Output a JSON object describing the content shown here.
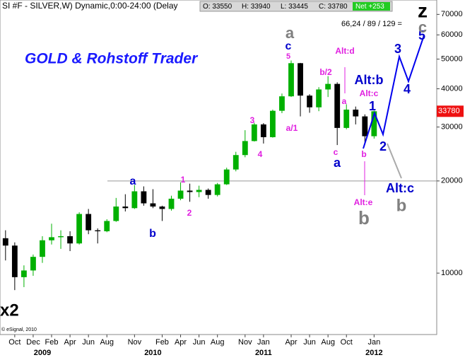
{
  "chart_data": {
    "type": "candlestick",
    "title": "SI #F - SILVER,W) Dynamic,0:00-24:00 (Delay",
    "ohlc_box": [
      "O: 33550",
      "H: 33940",
      "L: 33445",
      "C: 33780"
    ],
    "net_box": "Net +253",
    "ratio_text": "66,24 / 89 / 129 =",
    "brand": "GOLD & Rohstoff Trader",
    "degree_label": "x2",
    "copyright": "© eSignal, 2010",
    "last_price": 33780,
    "hline": 20000,
    "log_scale": true,
    "up_color": "#00b000",
    "down_color": "#000000",
    "x": [
      -1,
      0,
      1,
      2,
      3,
      4,
      5,
      6,
      7,
      8,
      9,
      10,
      11,
      12,
      13,
      14,
      15,
      16,
      17,
      18,
      19,
      20,
      21,
      22,
      23,
      24,
      25,
      26,
      27,
      28,
      29,
      30,
      31,
      32,
      33,
      34,
      35,
      36,
      37,
      38,
      39
    ],
    "open": [
      13000,
      12300,
      9700,
      10200,
      11300,
      12800,
      13100,
      13200,
      12500,
      15600,
      13800,
      13700,
      14800,
      16500,
      16300,
      18500,
      16900,
      16500,
      16200,
      17500,
      18600,
      18400,
      18700,
      18000,
      19500,
      21800,
      24300,
      27000,
      30600,
      27800,
      33900,
      37800,
      48500,
      38000,
      34800,
      39800,
      41500,
      29800,
      34200,
      32500,
      28000
    ],
    "high": [
      13800,
      12600,
      10600,
      11500,
      13200,
      14500,
      13800,
      13700,
      15800,
      16200,
      14000,
      15000,
      17600,
      18100,
      19400,
      19200,
      18800,
      16600,
      17900,
      19800,
      19600,
      19300,
      18900,
      19700,
      22100,
      24900,
      29300,
      31000,
      30900,
      34200,
      38600,
      49500,
      48600,
      38400,
      40500,
      44000,
      42000,
      35600,
      35000,
      33000,
      33940
    ],
    "low": [
      11000,
      8800,
      9000,
      9800,
      10800,
      12400,
      12000,
      11800,
      12400,
      13400,
      12500,
      13600,
      14700,
      15900,
      16200,
      16600,
      16300,
      14800,
      16000,
      17300,
      17100,
      17700,
      17500,
      17800,
      19400,
      21500,
      23900,
      26900,
      26500,
      27700,
      33300,
      37600,
      32500,
      33400,
      33800,
      37600,
      26200,
      29500,
      30600,
      26400,
      27500
    ],
    "close": [
      12300,
      9700,
      10200,
      11300,
      12800,
      13100,
      13200,
      12500,
      15600,
      13800,
      13700,
      14800,
      16500,
      16300,
      18500,
      16900,
      16500,
      16200,
      17500,
      18600,
      18400,
      18700,
      18000,
      19500,
      21800,
      24300,
      27000,
      30600,
      27800,
      33900,
      37800,
      48500,
      38000,
      34800,
      39800,
      41500,
      29800,
      34200,
      32500,
      28000,
      33780
    ],
    "xlim": [
      -1.6,
      45.8
    ],
    "ylim": [
      6300,
      78000
    ],
    "yticks": [
      10000,
      20000,
      30000,
      40000,
      50000,
      60000,
      70000
    ],
    "xticks": [
      {
        "value": 0,
        "label": "Oct"
      },
      {
        "value": 2,
        "label": "Dec"
      },
      {
        "value": 4,
        "label": "Feb"
      },
      {
        "value": 6,
        "label": "Apr"
      },
      {
        "value": 8,
        "label": "Jun"
      },
      {
        "value": 10,
        "label": "Aug"
      },
      {
        "value": 13,
        "label": "Nov"
      },
      {
        "value": 16,
        "label": "Feb"
      },
      {
        "value": 18,
        "label": "Apr"
      },
      {
        "value": 20,
        "label": "Jun"
      },
      {
        "value": 22,
        "label": "Aug"
      },
      {
        "value": 25,
        "label": "Nov"
      },
      {
        "value": 27,
        "label": "Jan"
      },
      {
        "value": 30,
        "label": "Apr"
      },
      {
        "value": 32,
        "label": "Jun"
      },
      {
        "value": 34,
        "label": "Aug"
      },
      {
        "value": 36,
        "label": "Oct"
      },
      {
        "value": 39,
        "label": "Jan"
      }
    ],
    "year_ticks": [
      {
        "value": 3,
        "label": "2009"
      },
      {
        "value": 15,
        "label": "2010"
      },
      {
        "value": 27,
        "label": "2011"
      },
      {
        "value": 39,
        "label": "2012"
      }
    ],
    "annotations": [
      {
        "text": "a",
        "color": "#808080"
      },
      {
        "text": "c",
        "color": "#0000cc"
      },
      {
        "text": "5",
        "color": "#e020e0"
      },
      {
        "text": "a",
        "color": "#0000cc"
      },
      {
        "text": "b",
        "color": "#0000cc"
      },
      {
        "text": "1",
        "color": "#e020e0"
      },
      {
        "text": "2",
        "color": "#e020e0"
      },
      {
        "text": "3",
        "color": "#e020e0"
      },
      {
        "text": "4",
        "color": "#e020e0"
      },
      {
        "text": "a/1",
        "color": "#e020e0"
      },
      {
        "text": "b/2",
        "color": "#e020e0"
      },
      {
        "text": "Alt:d",
        "color": "#e020e0"
      },
      {
        "text": "Alt:b",
        "color": "#0000cc"
      },
      {
        "text": "Alt:c",
        "color": "#e020e0"
      },
      {
        "text": "1",
        "color": "#0000cc"
      },
      {
        "text": "a",
        "color": "#e020e0"
      },
      {
        "text": "c",
        "color": "#e020e0"
      },
      {
        "text": "a",
        "color": "#0000cc"
      },
      {
        "text": "b",
        "color": "#e020e0"
      },
      {
        "text": "Alt:e",
        "color": "#e020e0"
      },
      {
        "text": "b",
        "color": "#808080"
      },
      {
        "text": "2",
        "color": "#0000cc"
      },
      {
        "text": "3",
        "color": "#0000cc"
      },
      {
        "text": "4",
        "color": "#0000cc"
      },
      {
        "text": "5",
        "color": "#0000cc"
      },
      {
        "text": "Alt:c",
        "color": "#0000cc"
      },
      {
        "text": "b",
        "color": "#808080"
      },
      {
        "text": "z",
        "color": "#000000"
      },
      {
        "text": "c",
        "color": "#808080"
      }
    ]
  }
}
